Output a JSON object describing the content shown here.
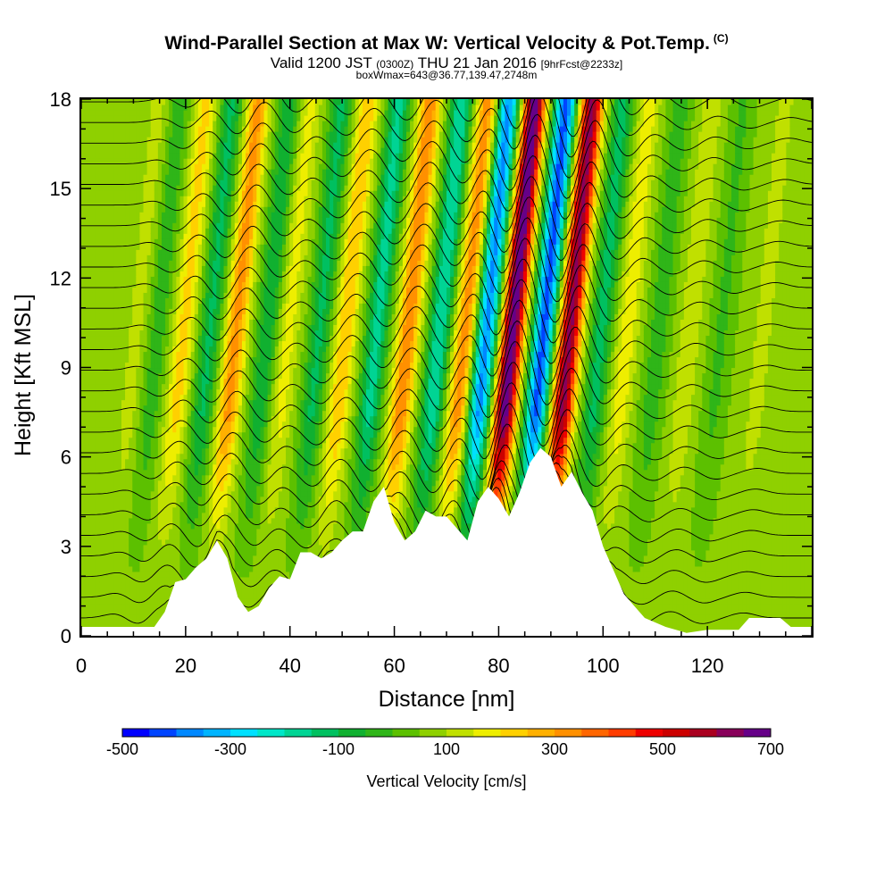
{
  "header": {
    "title": "Wind-Parallel Section at Max W: Vertical Velocity & Pot.Temp.",
    "copyright": "(C)",
    "valid_prefix": "Valid 1200 JST",
    "valid_zulu": "(0300Z)",
    "valid_date": "THU 21 Jan 2016",
    "forecast": "[9hrFcst@2233z]",
    "boxinfo": "boxWmax=643@36.77,139.47,2748m"
  },
  "chart_data": {
    "type": "heatmap",
    "xlabel": "Distance [nm]",
    "ylabel": "Height [Kft MSL]",
    "xlim": [
      0,
      140
    ],
    "ylim": [
      0,
      18
    ],
    "x_ticks": [
      0,
      20,
      40,
      60,
      80,
      100,
      120
    ],
    "y_ticks": [
      0,
      3,
      6,
      9,
      12,
      15,
      18
    ],
    "colorbar": {
      "label": "Vertical Velocity [cm/s]",
      "tick_labels": [
        "-500",
        "-300",
        "-100",
        "100",
        "300",
        "500",
        "700"
      ],
      "range": [
        -500,
        700
      ],
      "colors": [
        "#0000ff",
        "#0044ff",
        "#0088ff",
        "#00b4ff",
        "#00e0ff",
        "#00e6c8",
        "#00d494",
        "#00c060",
        "#10b030",
        "#2fb518",
        "#5cc000",
        "#8fd000",
        "#c0e000",
        "#eeee00",
        "#ffd000",
        "#ffb000",
        "#ff9000",
        "#ff6600",
        "#ff3c00",
        "#ee0000",
        "#cc0000",
        "#aa0020",
        "#88005a",
        "#660088"
      ]
    },
    "background_w": 60,
    "terrain": [
      [
        0,
        0.3
      ],
      [
        10,
        0.3
      ],
      [
        14,
        0.3
      ],
      [
        16,
        0.8
      ],
      [
        18,
        1.8
      ],
      [
        20,
        1.9
      ],
      [
        22,
        2.3
      ],
      [
        24,
        2.6
      ],
      [
        26,
        3.2
      ],
      [
        28,
        2.6
      ],
      [
        30,
        1.3
      ],
      [
        32,
        0.8
      ],
      [
        34,
        1.0
      ],
      [
        36,
        1.6
      ],
      [
        38,
        2.0
      ],
      [
        40,
        1.9
      ],
      [
        42,
        2.8
      ],
      [
        44,
        2.8
      ],
      [
        46,
        2.6
      ],
      [
        48,
        2.8
      ],
      [
        50,
        3.2
      ],
      [
        52,
        3.5
      ],
      [
        54,
        3.5
      ],
      [
        56,
        4.5
      ],
      [
        58,
        5.0
      ],
      [
        60,
        3.8
      ],
      [
        62,
        3.2
      ],
      [
        64,
        3.5
      ],
      [
        66,
        4.2
      ],
      [
        68,
        4.0
      ],
      [
        70,
        4.0
      ],
      [
        72,
        3.6
      ],
      [
        74,
        3.2
      ],
      [
        76,
        4.5
      ],
      [
        78,
        5.0
      ],
      [
        80,
        4.6
      ],
      [
        82,
        4.0
      ],
      [
        84,
        4.8
      ],
      [
        86,
        5.8
      ],
      [
        88,
        6.3
      ],
      [
        90,
        6.0
      ],
      [
        92,
        5.0
      ],
      [
        94,
        5.5
      ],
      [
        96,
        4.8
      ],
      [
        98,
        4.2
      ],
      [
        100,
        3.0
      ],
      [
        102,
        2.2
      ],
      [
        104,
        1.4
      ],
      [
        106,
        1.0
      ],
      [
        108,
        0.6
      ],
      [
        112,
        0.3
      ],
      [
        116,
        0.1
      ],
      [
        120,
        0.2
      ],
      [
        126,
        0.2
      ],
      [
        128,
        0.6
      ],
      [
        134,
        0.6
      ],
      [
        136,
        0.3
      ],
      [
        140,
        0.3
      ]
    ],
    "updraft_bands": [
      {
        "x": 10,
        "amp": 60
      },
      {
        "x": 19,
        "amp": 160
      },
      {
        "x": 29,
        "amp": 260
      },
      {
        "x": 39,
        "amp": 110
      },
      {
        "x": 50,
        "amp": 190
      },
      {
        "x": 62,
        "amp": 280
      },
      {
        "x": 73,
        "amp": 270
      },
      {
        "x": 82,
        "amp": 640
      },
      {
        "x": 93,
        "amp": 560
      },
      {
        "x": 104,
        "amp": 120
      },
      {
        "x": 116,
        "amp": 80
      },
      {
        "x": 130,
        "amp": 60
      }
    ],
    "downdraft_bands": [
      {
        "x": 14,
        "amp": -90
      },
      {
        "x": 24,
        "amp": -170
      },
      {
        "x": 35,
        "amp": -150
      },
      {
        "x": 45,
        "amp": -170
      },
      {
        "x": 56,
        "amp": -230
      },
      {
        "x": 68,
        "amp": -260
      },
      {
        "x": 77,
        "amp": -430
      },
      {
        "x": 88,
        "amp": -480
      },
      {
        "x": 99,
        "amp": -180
      },
      {
        "x": 110,
        "amp": -90
      },
      {
        "x": 122,
        "amp": -70
      }
    ],
    "isentropes_levels": 26
  }
}
